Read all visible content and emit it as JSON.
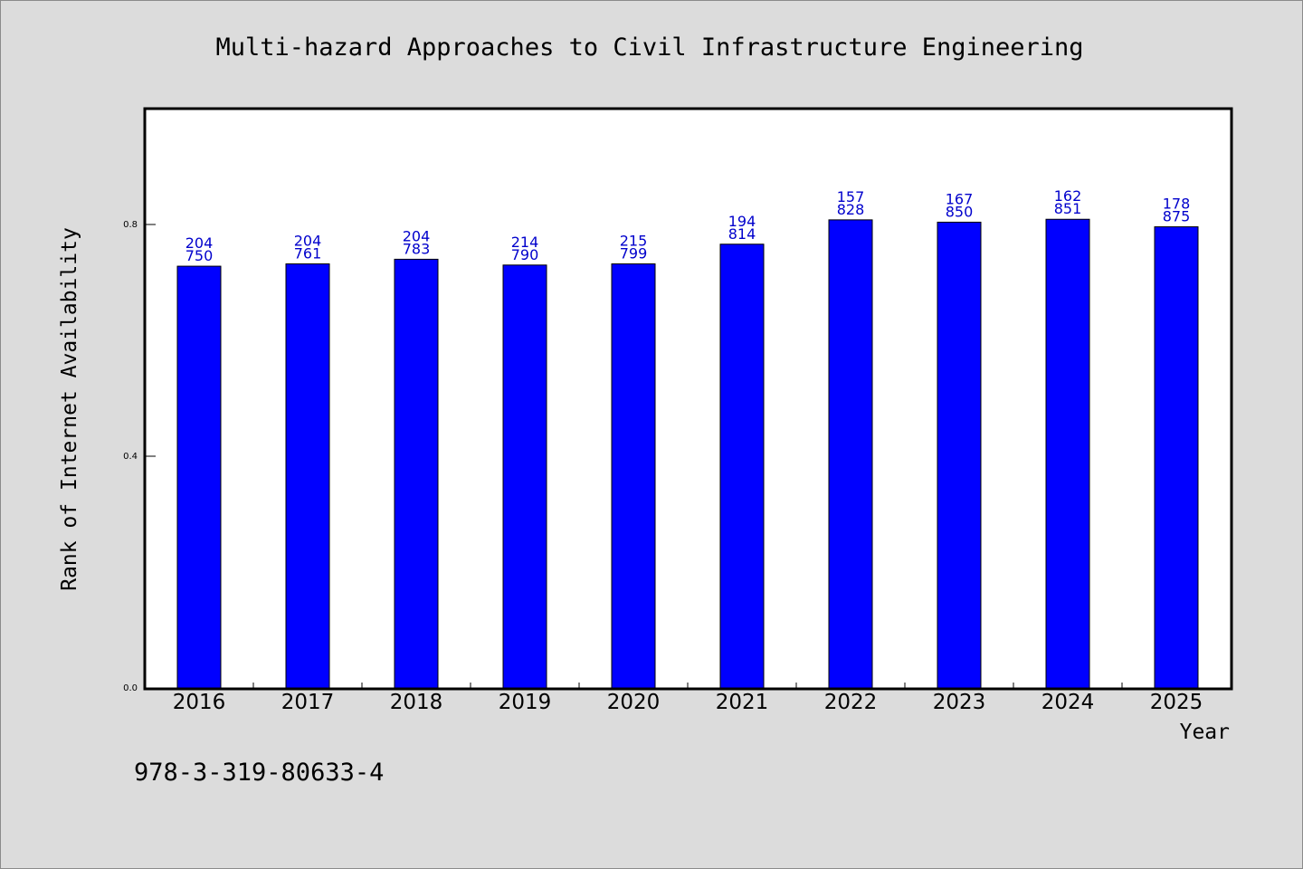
{
  "chart_data": {
    "type": "bar",
    "title": "Multi-hazard Approaches to Civil Infrastructure Engineering",
    "xlabel": "Year",
    "ylabel": "Rank of Internet Availability",
    "categories": [
      "2016",
      "2017",
      "2018",
      "2019",
      "2020",
      "2021",
      "2022",
      "2023",
      "2024",
      "2025"
    ],
    "values": [
      0.728,
      0.732,
      0.74,
      0.73,
      0.732,
      0.766,
      0.808,
      0.804,
      0.809,
      0.796
    ],
    "data_labels": [
      [
        "204",
        "750"
      ],
      [
        "204",
        "761"
      ],
      [
        "204",
        "783"
      ],
      [
        "214",
        "790"
      ],
      [
        "215",
        "799"
      ],
      [
        "194",
        "814"
      ],
      [
        "157",
        "828"
      ],
      [
        "167",
        "850"
      ],
      [
        "162",
        "851"
      ],
      [
        "178",
        "875"
      ]
    ],
    "yticks": [
      "0.0",
      "0.4",
      "0.8"
    ],
    "ylim": [
      0,
      1.0
    ],
    "grid": false,
    "legend": "none",
    "bar_color": "#0000ff",
    "label_color": "#0000cc"
  },
  "footer": {
    "isbn": "978-3-319-80633-4"
  }
}
